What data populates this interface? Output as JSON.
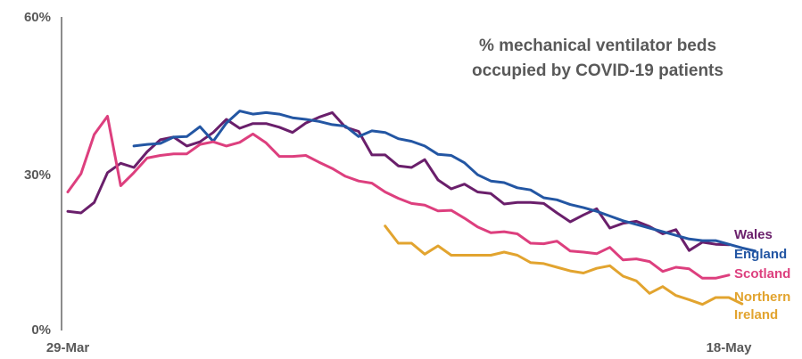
{
  "chart_data": {
    "type": "line",
    "title_lines": [
      "% mechanical ventilator beds",
      "occupied by COVID-19 patients"
    ],
    "xlabel": "",
    "ylabel": "",
    "ylim": [
      0,
      60
    ],
    "x_tick_labels": [
      "29-Mar",
      "18-May"
    ],
    "y_ticks": [
      {
        "value": 0,
        "label": "0%"
      },
      {
        "value": 30,
        "label": "30%"
      },
      {
        "value": 60,
        "label": "60%"
      }
    ],
    "grid": false,
    "legend": "right, inline labels at line ends",
    "series": [
      {
        "name": "Wales",
        "legend_lines": [
          "Wales"
        ],
        "color": "#6a1f6b",
        "start_index": 0,
        "values": [
          22.8,
          22.5,
          24.5,
          30.2,
          32.0,
          31.2,
          34.2,
          36.5,
          37.0,
          35.3,
          36.1,
          37.9,
          40.4,
          38.7,
          39.6,
          39.6,
          38.9,
          37.9,
          39.7,
          40.8,
          41.7,
          38.9,
          38.1,
          33.6,
          33.6,
          31.5,
          31.2,
          32.7,
          28.8,
          27.1,
          28.0,
          26.5,
          26.2,
          24.2,
          24.5,
          24.5,
          24.3,
          22.5,
          20.8,
          22.1,
          23.3,
          19.6,
          20.5,
          20.9,
          19.9,
          18.5,
          19.3,
          15.3,
          16.9,
          16.5,
          16.4
        ]
      },
      {
        "name": "England",
        "legend_lines": [
          "England"
        ],
        "color": "#2356a3",
        "start_index": 5,
        "values": [
          35.3,
          35.6,
          35.8,
          37.0,
          37.1,
          39.0,
          36.2,
          39.7,
          42.0,
          41.4,
          41.7,
          41.4,
          40.7,
          40.4,
          40.0,
          39.4,
          39.1,
          37.1,
          38.2,
          37.9,
          36.7,
          36.2,
          35.3,
          33.7,
          33.5,
          32.1,
          29.8,
          28.6,
          28.3,
          27.3,
          26.9,
          25.4,
          25.0,
          24.1,
          23.5,
          22.8,
          21.9,
          21.0,
          20.3,
          19.6,
          18.9,
          18.2,
          17.5,
          17.2,
          17.2,
          16.5,
          15.8,
          15.2
        ]
      },
      {
        "name": "Scotland",
        "legend_lines": [
          "Scotland"
        ],
        "color": "#dd3f7e",
        "start_index": 0,
        "values": [
          26.5,
          30.0,
          37.5,
          41.0,
          27.7,
          30.2,
          33.0,
          33.5,
          33.8,
          33.8,
          35.6,
          36.1,
          35.3,
          36.0,
          37.6,
          35.9,
          33.3,
          33.3,
          33.5,
          32.2,
          31.0,
          29.5,
          28.6,
          28.2,
          26.5,
          25.3,
          24.3,
          24.0,
          22.9,
          23.0,
          21.5,
          19.8,
          18.7,
          18.9,
          18.5,
          16.7,
          16.6,
          17.1,
          15.2,
          15.0,
          14.7,
          15.9,
          13.5,
          13.7,
          13.2,
          11.3,
          12.1,
          11.8,
          10.0,
          10.0,
          10.6
        ]
      },
      {
        "name": "Northern Ireland",
        "legend_lines": [
          "Northern",
          "Ireland"
        ],
        "color": "#e2a42f",
        "start_index": 24,
        "values": [
          20.0,
          16.7,
          16.7,
          14.6,
          16.2,
          14.4,
          14.4,
          14.4,
          14.4,
          15.0,
          14.4,
          13.0,
          12.8,
          12.1,
          11.4,
          11.0,
          11.9,
          12.4,
          10.4,
          9.5,
          7.1,
          8.4,
          6.7,
          5.9,
          5.0,
          6.3,
          6.3,
          5.1
        ]
      }
    ]
  }
}
